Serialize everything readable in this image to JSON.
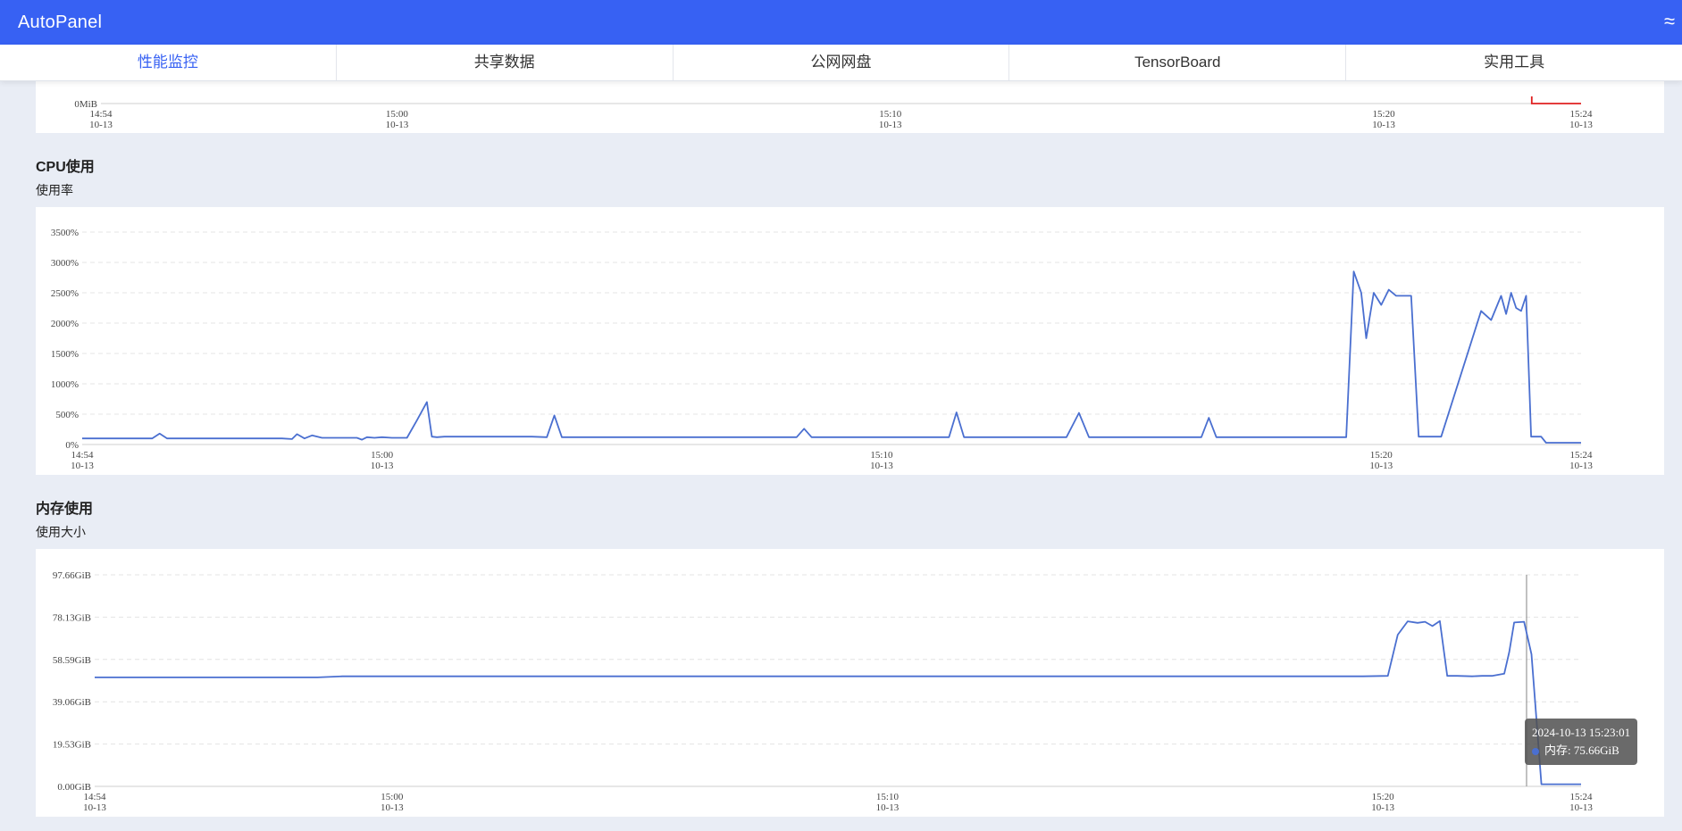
{
  "app": {
    "title": "AutoPanel"
  },
  "colors": {
    "accent": "#3761f3",
    "line": "#4a6fd0",
    "gpu_line": "#e02020"
  },
  "tabs": [
    {
      "label": "性能监控",
      "active": true
    },
    {
      "label": "共享数据",
      "active": false
    },
    {
      "label": "公网网盘",
      "active": false
    },
    {
      "label": "TensorBoard",
      "active": false
    },
    {
      "label": "实用工具",
      "active": false
    }
  ],
  "sections": {
    "cpu": {
      "title": "CPU使用",
      "subtitle": "使用率"
    },
    "memory": {
      "title": "内存使用",
      "subtitle": "使用大小"
    }
  },
  "tooltip": {
    "time": "2024-10-13 15:23:01",
    "label": "内存: 75.66GiB"
  },
  "chart_data": [
    {
      "type": "line",
      "id": "top-partial",
      "ytick": "0MiB",
      "xticks": [
        {
          "time": "14:54",
          "date": "10-13",
          "minute": 0
        },
        {
          "time": "15:00",
          "date": "10-13",
          "minute": 6
        },
        {
          "time": "15:10",
          "date": "10-13",
          "minute": 16
        },
        {
          "time": "15:20",
          "date": "10-13",
          "minute": 26
        },
        {
          "time": "15:24",
          "date": "10-13",
          "minute": 30
        }
      ],
      "series": [
        {
          "x": [
            29.0,
            29.0,
            30.0
          ],
          "y": [
            1,
            0,
            0
          ]
        }
      ]
    },
    {
      "type": "line",
      "id": "cpu",
      "yunit": "%",
      "yticks": [
        "0%",
        "500%",
        "1000%",
        "1500%",
        "2000%",
        "2500%",
        "3000%",
        "3500%"
      ],
      "ylim": [
        0,
        3500
      ],
      "xticks": [
        {
          "time": "14:54",
          "date": "10-13",
          "minute": 0
        },
        {
          "time": "15:00",
          "date": "10-13",
          "minute": 6
        },
        {
          "time": "15:10",
          "date": "10-13",
          "minute": 16
        },
        {
          "time": "15:20",
          "date": "10-13",
          "minute": 26
        },
        {
          "time": "15:24",
          "date": "10-13",
          "minute": 30
        }
      ],
      "series": [
        {
          "x": [
            0,
            1.4,
            1.55,
            1.7,
            4.0,
            4.2,
            4.3,
            4.45,
            4.6,
            4.8,
            5.0,
            5.5,
            5.6,
            5.7,
            5.85,
            6.0,
            6.2,
            6.5,
            6.7,
            6.9,
            7.0,
            7.1,
            7.25,
            8.0,
            9.0,
            9.3,
            9.45,
            9.6,
            10.0,
            12.0,
            14.3,
            14.45,
            14.6,
            16.0,
            17.0,
            17.35,
            17.5,
            17.65,
            19.0,
            19.7,
            19.95,
            20.15,
            22.0,
            22.4,
            22.55,
            22.7,
            25.0,
            25.3,
            25.45,
            25.6,
            25.7,
            25.85,
            26.0,
            26.15,
            26.3,
            26.45,
            26.6,
            26.75,
            26.9,
            27.05,
            27.2,
            28.0,
            28.2,
            28.4,
            28.5,
            28.6,
            28.7,
            28.8,
            28.9,
            29.0,
            29.1,
            29.2,
            29.3,
            29.4,
            30.0
          ],
          "y": [
            100,
            100,
            180,
            100,
            100,
            90,
            170,
            100,
            150,
            110,
            110,
            110,
            80,
            120,
            110,
            120,
            110,
            110,
            400,
            700,
            130,
            120,
            130,
            130,
            130,
            120,
            480,
            120,
            120,
            120,
            120,
            260,
            120,
            120,
            120,
            120,
            530,
            120,
            120,
            120,
            520,
            120,
            120,
            120,
            440,
            120,
            120,
            120,
            2850,
            2500,
            1750,
            2500,
            2300,
            2550,
            2450,
            2450,
            2450,
            130,
            130,
            130,
            130,
            2200,
            2050,
            2450,
            2150,
            2500,
            2250,
            2200,
            2450,
            130,
            130,
            130,
            30,
            30,
            30
          ]
        }
      ]
    },
    {
      "type": "line",
      "id": "memory",
      "yunit": "GiB",
      "yticks": [
        "0.00GiB",
        "19.53GiB",
        "39.06GiB",
        "58.59GiB",
        "78.13GiB",
        "97.66GiB"
      ],
      "ylim": [
        0,
        97.66
      ],
      "xticks": [
        {
          "time": "14:54",
          "date": "10-13",
          "minute": 0
        },
        {
          "time": "15:00",
          "date": "10-13",
          "minute": 6
        },
        {
          "time": "15:10",
          "date": "10-13",
          "minute": 16
        },
        {
          "time": "15:20",
          "date": "10-13",
          "minute": 26
        },
        {
          "time": "15:24",
          "date": "10-13",
          "minute": 30
        }
      ],
      "series": [
        {
          "name": "内存",
          "x": [
            0,
            4.5,
            5.0,
            10.0,
            20.0,
            25.6,
            26.1,
            26.3,
            26.5,
            26.7,
            26.85,
            27.0,
            27.15,
            27.3,
            27.5,
            27.8,
            28.0,
            28.2,
            28.45,
            28.55,
            28.65,
            28.85,
            29.0,
            29.2,
            29.3,
            30.0
          ],
          "y": [
            50.3,
            50.3,
            50.8,
            50.8,
            50.8,
            50.8,
            51.0,
            70.0,
            76.2,
            75.5,
            76.0,
            74.0,
            76.3,
            51.0,
            51.0,
            50.8,
            51.0,
            51.0,
            52.0,
            62.0,
            75.66,
            76.0,
            61.0,
            1.0,
            1.0,
            1.0
          ]
        }
      ],
      "crosshair_minute": 28.9
    }
  ]
}
